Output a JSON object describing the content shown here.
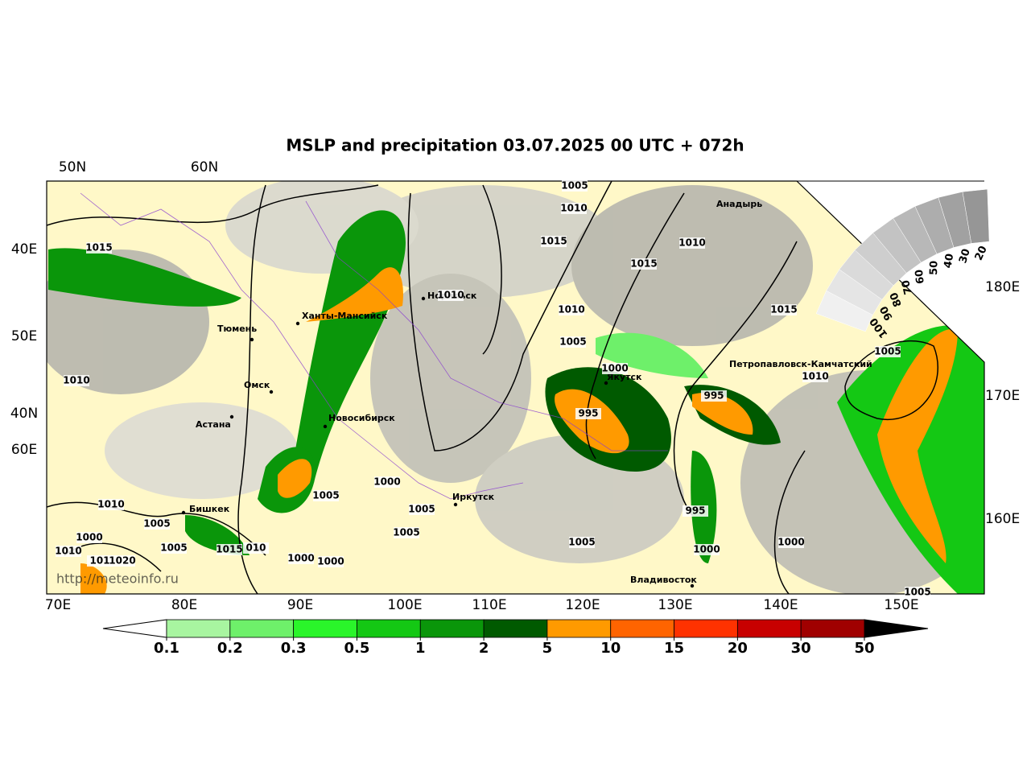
{
  "title": "MSLP and precipitation 03.07.2025 00 UTC + 072h",
  "top_labels": [
    "50N",
    "60N"
  ],
  "left_labels": [
    "40E",
    "50E",
    "40N",
    "60E"
  ],
  "right_labels": [
    "180E",
    "170E",
    "160E"
  ],
  "bottom_labels": [
    "70E",
    "80E",
    "90E",
    "100E",
    "110E",
    "120E",
    "130E",
    "140E",
    "150E"
  ],
  "cities": [
    "Анадырь",
    "Норильск",
    "Ханты-Мансийск",
    "Тюмень",
    "Омск",
    "Астана",
    "Новосибирск",
    "Бишкек",
    "Иркутск",
    "Якутск",
    "Петропавловск-Камчатский",
    "Владивосток"
  ],
  "isobar_labels": [
    "1005",
    "1010",
    "1015",
    "1015",
    "1010",
    "1015",
    "1010",
    "1010",
    "1005",
    "1015",
    "1005",
    "1000",
    "1010",
    "995",
    "1010",
    "995",
    "1000",
    "1005",
    "1010",
    "1005",
    "995",
    "1005",
    "1000",
    "1005",
    "1005",
    "1000",
    "1010",
    "1005",
    "1015",
    "010",
    "1000",
    "101",
    "1020",
    "1000",
    "1000",
    "1005"
  ],
  "cloud_scale": [
    "100",
    "90",
    "80",
    "70",
    "60",
    "50",
    "40",
    "30",
    "20"
  ],
  "colorbar": {
    "levels": [
      0.1,
      0.2,
      0.3,
      0.5,
      1,
      2,
      5,
      10,
      15,
      20,
      30,
      50
    ],
    "colors": [
      "#a8f5a0",
      "#6ef06a",
      "#2af52a",
      "#14c814",
      "#0a960a",
      "#005a00",
      "#ff9a00",
      "#ff6400",
      "#ff3200",
      "#c80000",
      "#a00000"
    ]
  },
  "watermark": "http://meteoinfo.ru"
}
